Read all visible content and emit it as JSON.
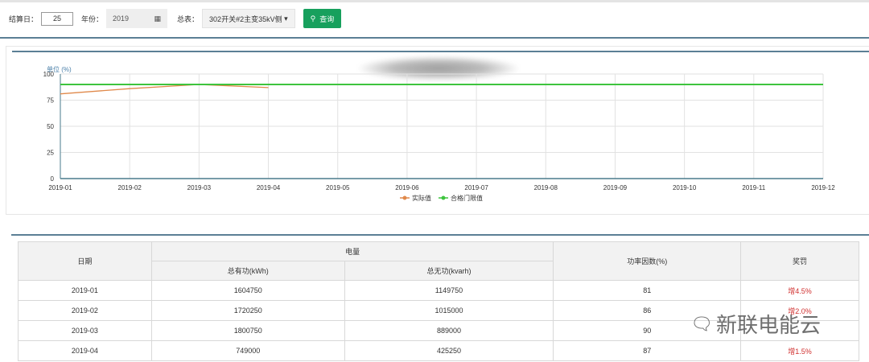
{
  "toolbar": {
    "day_label": "结算日：",
    "day_value": "25",
    "year_label": "年份：",
    "year_value": "2019",
    "meter_label": "总表：",
    "meter_value": "302开关#2主变35kV侧",
    "query_label": "查询"
  },
  "chart_data": {
    "type": "line",
    "title": "",
    "ylabel": "单位 (%)",
    "ylim": [
      0,
      100
    ],
    "yticks": [
      "0",
      "25",
      "50",
      "75",
      "100"
    ],
    "categories": [
      "2019-01",
      "2019-02",
      "2019-03",
      "2019-04",
      "2019-05",
      "2019-06",
      "2019-07",
      "2019-08",
      "2019-09",
      "2019-10",
      "2019-11",
      "2019-12"
    ],
    "series": [
      {
        "name": "实际值",
        "color": "#e0894a",
        "values": [
          81,
          86,
          90,
          87,
          null,
          null,
          null,
          null,
          null,
          null,
          null,
          null
        ]
      },
      {
        "name": "合格门限值",
        "color": "#3ec43e",
        "values": [
          90,
          90,
          90,
          90,
          90,
          90,
          90,
          90,
          90,
          90,
          90,
          90
        ]
      }
    ],
    "grid": true,
    "legend": "bottom"
  },
  "table": {
    "headers": {
      "date": "日期",
      "energy": "电量",
      "active": "总有功(kWh)",
      "reactive": "总无功(kvarh)",
      "pf": "功率因数(%)",
      "reward": "奖罚"
    },
    "rows": [
      [
        "2019-01",
        "1604750",
        "1149750",
        "81",
        "增4.5%"
      ],
      [
        "2019-02",
        "1720250",
        "1015000",
        "86",
        "增2.0%"
      ],
      [
        "2019-03",
        "1800750",
        "889000",
        "90",
        ""
      ],
      [
        "2019-04",
        "749000",
        "425250",
        "87",
        "增1.5%"
      ]
    ]
  },
  "watermark": {
    "text": "新联电能云"
  }
}
